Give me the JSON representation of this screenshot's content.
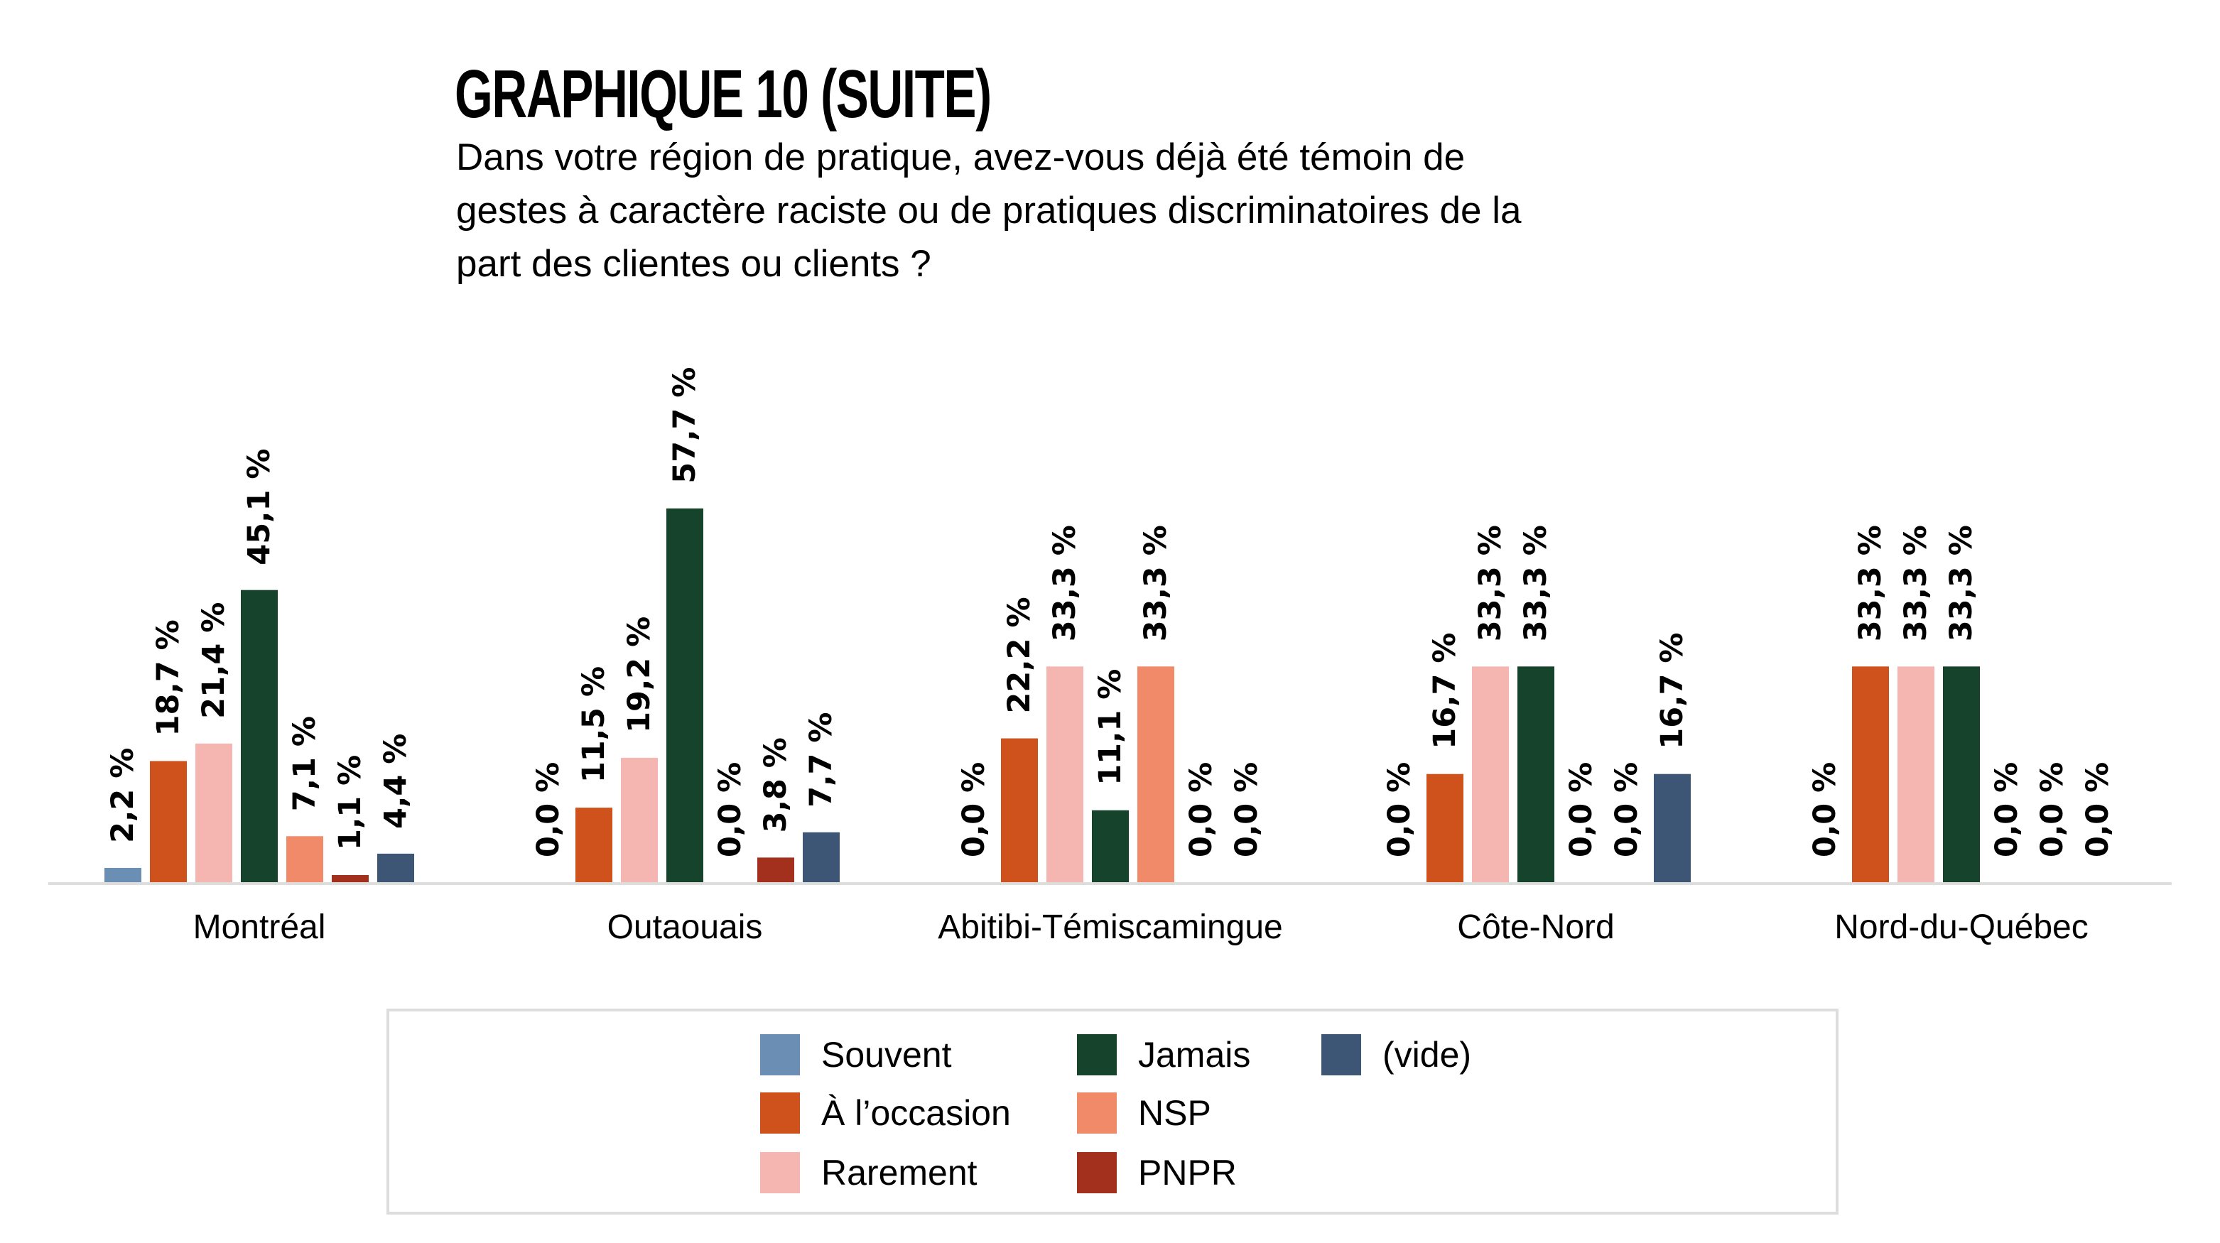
{
  "chart_data": {
    "type": "bar",
    "title": "GRAPHIQUE 10 (SUITE)",
    "subtitle_lines": [
      "Dans votre région de pratique, avez-vous déjà été témoin de",
      "gestes à caractère raciste ou de pratiques discriminatoires de la",
      "part des clientes ou clients ?"
    ],
    "xlabel": "",
    "ylabel": "",
    "ylim": [
      0,
      70
    ],
    "grid": false,
    "value_suffix": " %",
    "decimal_separator": ",",
    "legend_position": "bottom-center",
    "categories": [
      "Montréal",
      "Outaouais",
      "Abitibi-Témiscamingue",
      "Côte-Nord",
      "Nord-du-Québec"
    ],
    "series": [
      {
        "name": "Souvent",
        "color": "#6b8fb4",
        "values": [
          2.2,
          0.0,
          0.0,
          0.0,
          0.0
        ]
      },
      {
        "name": "À l’occasion",
        "color": "#cf521c",
        "values": [
          18.7,
          11.5,
          22.2,
          16.7,
          33.3
        ]
      },
      {
        "name": "Rarement",
        "color": "#f5b5b0",
        "values": [
          21.4,
          19.2,
          33.3,
          33.3,
          33.3
        ]
      },
      {
        "name": "Jamais",
        "color": "#15432c",
        "values": [
          45.1,
          57.7,
          11.1,
          33.3,
          33.3
        ]
      },
      {
        "name": "NSP",
        "color": "#f08a68",
        "values": [
          7.1,
          0.0,
          33.3,
          0.0,
          0.0
        ]
      },
      {
        "name": "PNPR",
        "color": "#a3301c",
        "values": [
          1.1,
          3.8,
          0.0,
          0.0,
          0.0
        ]
      },
      {
        "name": "(vide)",
        "color": "#3e5675",
        "values": [
          4.4,
          7.7,
          0.0,
          16.7,
          0.0
        ]
      }
    ],
    "legend_layout": [
      [
        "Souvent",
        "Jamais",
        "(vide)"
      ],
      [
        "À l’occasion",
        "NSP"
      ],
      [
        "Rarement",
        "PNPR"
      ]
    ]
  },
  "colors": {
    "axis": "#dddddd",
    "legend_border": "#dddddd",
    "text": "#000000",
    "background": "#ffffff"
  }
}
